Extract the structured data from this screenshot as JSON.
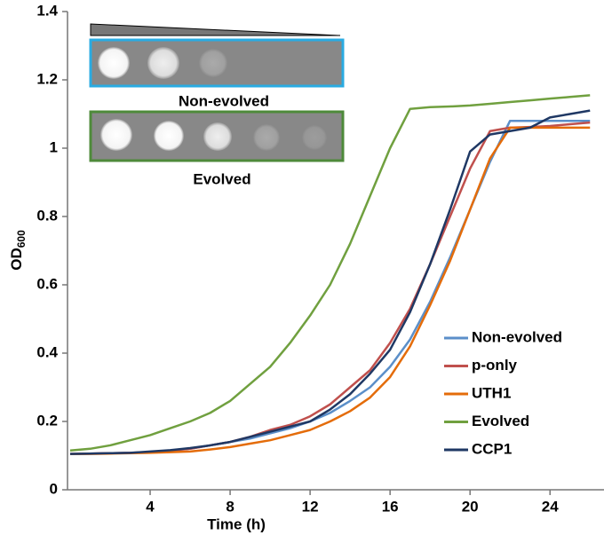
{
  "chart_data": {
    "type": "line",
    "ylabel": "OD",
    "ylabel_subscript": "600",
    "xlabel": "Time (h)",
    "inset_labels": [
      "Non-evolved",
      "Evolved"
    ],
    "x": [
      0,
      1,
      2,
      3,
      4,
      5,
      6,
      7,
      8,
      9,
      10,
      11,
      12,
      13,
      14,
      15,
      16,
      17,
      18,
      19,
      20,
      21,
      22,
      23,
      24,
      25,
      26
    ],
    "series": [
      {
        "name": "Non-evolved",
        "color": "#5b8fc9",
        "values": [
          0.105,
          0.106,
          0.107,
          0.108,
          0.11,
          0.115,
          0.12,
          0.13,
          0.14,
          0.15,
          0.165,
          0.18,
          0.2,
          0.225,
          0.26,
          0.3,
          0.36,
          0.44,
          0.55,
          0.68,
          0.82,
          0.96,
          1.08,
          1.08,
          1.08,
          1.08,
          1.08
        ]
      },
      {
        "name": "p-only",
        "color": "#c0504d",
        "values": [
          0.105,
          0.106,
          0.107,
          0.108,
          0.11,
          0.115,
          0.12,
          0.13,
          0.14,
          0.155,
          0.175,
          0.19,
          0.215,
          0.25,
          0.3,
          0.35,
          0.43,
          0.53,
          0.66,
          0.8,
          0.94,
          1.05,
          1.06,
          1.062,
          1.065,
          1.07,
          1.075
        ]
      },
      {
        "name": "UTH1",
        "color": "#e46c0a",
        "values": [
          0.105,
          0.105,
          0.106,
          0.107,
          0.108,
          0.11,
          0.112,
          0.118,
          0.125,
          0.135,
          0.145,
          0.16,
          0.175,
          0.2,
          0.23,
          0.27,
          0.33,
          0.42,
          0.54,
          0.67,
          0.82,
          0.97,
          1.06,
          1.06,
          1.06,
          1.06,
          1.06
        ]
      },
      {
        "name": "Evolved",
        "color": "#70a03f",
        "values": [
          0.115,
          0.12,
          0.13,
          0.145,
          0.16,
          0.18,
          0.2,
          0.225,
          0.26,
          0.31,
          0.36,
          0.43,
          0.51,
          0.6,
          0.72,
          0.86,
          1.0,
          1.115,
          1.12,
          1.122,
          1.125,
          1.13,
          1.135,
          1.14,
          1.145,
          1.15,
          1.155
        ]
      },
      {
        "name": "CCP1",
        "color": "#1f3864",
        "values": [
          0.105,
          0.106,
          0.107,
          0.108,
          0.112,
          0.116,
          0.122,
          0.13,
          0.14,
          0.155,
          0.17,
          0.185,
          0.2,
          0.235,
          0.28,
          0.34,
          0.41,
          0.52,
          0.66,
          0.82,
          0.99,
          1.04,
          1.05,
          1.06,
          1.09,
          1.1,
          1.11
        ]
      }
    ],
    "xlim": [
      0,
      26.7
    ],
    "ylim": [
      0,
      1.4
    ],
    "xticks": [
      4,
      8,
      12,
      16,
      20,
      24
    ],
    "yticks": [
      0,
      0.2,
      0.4,
      0.6,
      0.8,
      1,
      1.2,
      1.4
    ],
    "legend": "lower right"
  }
}
